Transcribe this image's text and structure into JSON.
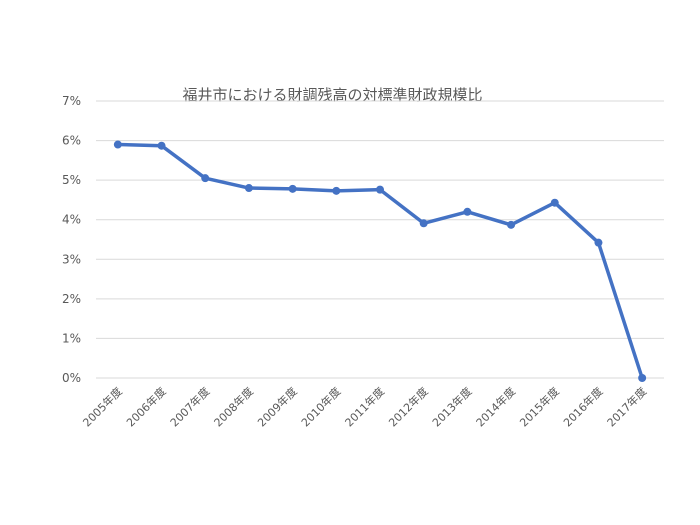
{
  "chart_data": {
    "type": "line",
    "title": "福井市における財調残高の対標準財政規模比",
    "xlabel": "",
    "ylabel": "",
    "categories": [
      "2005年度",
      "2006年度",
      "2007年度",
      "2008年度",
      "2009年度",
      "2010年度",
      "2011年度",
      "2012年度",
      "2013年度",
      "2014年度",
      "2015年度",
      "2016年度",
      "2017年度"
    ],
    "series": [
      {
        "values": [
          5.9,
          5.87,
          5.05,
          4.8,
          4.78,
          4.73,
          4.76,
          3.91,
          4.2,
          3.87,
          4.43,
          3.42,
          0.0
        ]
      }
    ],
    "ylim": [
      0,
      7
    ],
    "yticks": [
      "0%",
      "1%",
      "2%",
      "3%",
      "4%",
      "5%",
      "6%",
      "7%"
    ],
    "grid": true,
    "legend": "none",
    "colors": {
      "line": "#4472c4",
      "grid": "#d9d9d9",
      "text": "#595959"
    }
  }
}
